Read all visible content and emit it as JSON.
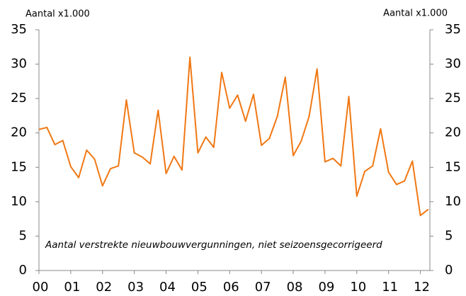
{
  "chart_data": {
    "type": "line",
    "y_label": "Aantal x1.000",
    "y2_label": "Aantal x1.000",
    "annotation": "Aantal verstrekte nieuwbouwvergunningen, niet seizoensgecorrigeerd",
    "x": [
      0,
      0.25,
      0.5,
      0.75,
      1,
      1.25,
      1.5,
      1.75,
      2,
      2.25,
      2.5,
      2.75,
      3,
      3.25,
      3.5,
      3.75,
      4,
      4.25,
      4.5,
      4.75,
      5,
      5.25,
      5.5,
      5.75,
      6,
      6.25,
      6.5,
      6.75,
      7,
      7.25,
      7.5,
      7.75,
      8,
      8.25,
      8.5,
      8.75,
      9,
      9.25,
      9.5,
      9.75,
      10,
      10.25,
      10.5,
      10.75,
      11,
      11.25,
      11.5,
      11.75,
      12,
      12.25
    ],
    "series": [
      {
        "color": "#f07814",
        "values": [
          20.5,
          20.8,
          18.3,
          18.9,
          15.1,
          13.5,
          17.5,
          16.2,
          12.3,
          14.8,
          15.2,
          24.8,
          17.1,
          16.5,
          15.5,
          23.3,
          14.1,
          16.6,
          14.6,
          31.0,
          17.1,
          19.4,
          17.9,
          28.8,
          23.6,
          25.5,
          21.7,
          25.6,
          18.2,
          19.2,
          22.4,
          28.1,
          16.7,
          18.8,
          22.4,
          29.3,
          15.8,
          16.3,
          15.2,
          25.3,
          10.8,
          14.4,
          15.2,
          20.6,
          14.3,
          12.5,
          13.0,
          15.9,
          8.0,
          8.9
        ]
      }
    ],
    "xlim": [
      0,
      12.3
    ],
    "xticks": [
      {
        "value": 0,
        "label": "00"
      },
      {
        "value": 1,
        "label": "01"
      },
      {
        "value": 2,
        "label": "02"
      },
      {
        "value": 3,
        "label": "03"
      },
      {
        "value": 4,
        "label": "04"
      },
      {
        "value": 5,
        "label": "05"
      },
      {
        "value": 6,
        "label": "06"
      },
      {
        "value": 7,
        "label": "07"
      },
      {
        "value": 8,
        "label": "08"
      },
      {
        "value": 9,
        "label": "09"
      },
      {
        "value": 10,
        "label": "10"
      },
      {
        "value": 11,
        "label": "11"
      },
      {
        "value": 12,
        "label": "12"
      }
    ],
    "ylim": [
      0,
      35
    ],
    "yticks": [
      0,
      5,
      10,
      15,
      20,
      25,
      30,
      35
    ],
    "y2lim": [
      0,
      35
    ],
    "y2ticks": [
      0,
      5,
      10,
      15,
      20,
      25,
      30,
      35
    ]
  }
}
